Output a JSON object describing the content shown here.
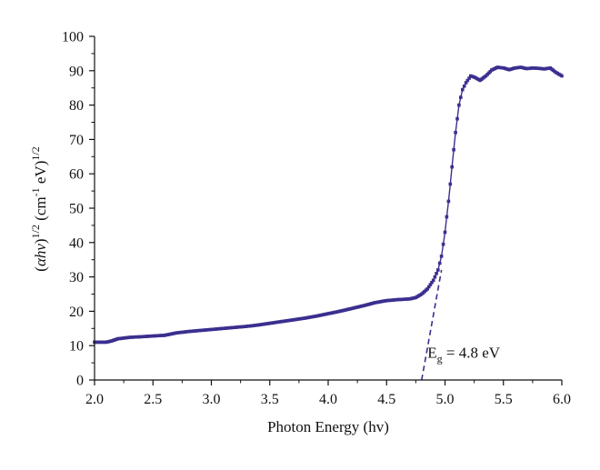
{
  "chart_data": {
    "type": "line",
    "title": "",
    "xlabel": "Photon Energy (hv)",
    "ylabel": {
      "prefix": "(",
      "alpha": "α",
      "h": "h",
      "nu": "ν",
      "close1": ")",
      "exp1": "1/2",
      "unit_open": " (cm",
      "unit_exp": "-1",
      "unit_ev": " eV)",
      "exp2": "1/2"
    },
    "xlim": [
      2.0,
      6.0
    ],
    "ylim": [
      0,
      100
    ],
    "xticks": [
      "2.0",
      "2.5",
      "3.0",
      "3.5",
      "4.0",
      "4.5",
      "5.0",
      "5.5",
      "6.0"
    ],
    "yticks": [
      "0",
      "10",
      "20",
      "30",
      "40",
      "50",
      "60",
      "70",
      "80",
      "90",
      "100"
    ],
    "grid": false,
    "colors": {
      "series": "#3b2f8f",
      "axis": "#111111"
    },
    "series": [
      {
        "marker": "square",
        "points": [
          [
            2.0,
            11.0
          ],
          [
            2.1,
            11.0
          ],
          [
            2.15,
            11.4
          ],
          [
            2.2,
            12.0
          ],
          [
            2.3,
            12.4
          ],
          [
            2.4,
            12.6
          ],
          [
            2.5,
            12.8
          ],
          [
            2.6,
            13.0
          ],
          [
            2.7,
            13.7
          ],
          [
            2.8,
            14.1
          ],
          [
            2.9,
            14.4
          ],
          [
            3.0,
            14.7
          ],
          [
            3.1,
            15.0
          ],
          [
            3.2,
            15.3
          ],
          [
            3.3,
            15.6
          ],
          [
            3.4,
            16.0
          ],
          [
            3.5,
            16.5
          ],
          [
            3.6,
            17.0
          ],
          [
            3.7,
            17.5
          ],
          [
            3.8,
            18.0
          ],
          [
            3.9,
            18.6
          ],
          [
            4.0,
            19.3
          ],
          [
            4.1,
            20.0
          ],
          [
            4.2,
            20.8
          ],
          [
            4.3,
            21.6
          ],
          [
            4.4,
            22.5
          ],
          [
            4.5,
            23.1
          ],
          [
            4.6,
            23.4
          ],
          [
            4.7,
            23.6
          ],
          [
            4.75,
            24.0
          ],
          [
            4.8,
            25.0
          ],
          [
            4.85,
            26.5
          ],
          [
            4.9,
            29.0
          ],
          [
            4.94,
            32.0
          ],
          [
            4.97,
            36.0
          ],
          [
            5.0,
            43.0
          ],
          [
            5.03,
            52.0
          ],
          [
            5.06,
            62.0
          ],
          [
            5.09,
            72.0
          ],
          [
            5.12,
            80.0
          ],
          [
            5.15,
            84.5
          ],
          [
            5.18,
            86.5
          ],
          [
            5.22,
            88.5
          ],
          [
            5.26,
            88.0
          ],
          [
            5.3,
            87.2
          ],
          [
            5.35,
            88.5
          ],
          [
            5.4,
            90.2
          ],
          [
            5.45,
            91.0
          ],
          [
            5.5,
            90.8
          ],
          [
            5.55,
            90.3
          ],
          [
            5.6,
            90.8
          ],
          [
            5.65,
            91.0
          ],
          [
            5.7,
            90.6
          ],
          [
            5.75,
            90.8
          ],
          [
            5.8,
            90.7
          ],
          [
            5.85,
            90.5
          ],
          [
            5.9,
            90.8
          ],
          [
            5.95,
            89.5
          ],
          [
            6.0,
            88.5
          ]
        ]
      }
    ],
    "fit_line": {
      "style": "dashed",
      "points": [
        [
          4.8,
          0
        ],
        [
          4.97,
          32.0
        ]
      ]
    },
    "annotation": {
      "base": "E",
      "subscript": "g",
      "rest": " = 4.8  eV",
      "x": 4.85,
      "y": 6.5
    }
  }
}
